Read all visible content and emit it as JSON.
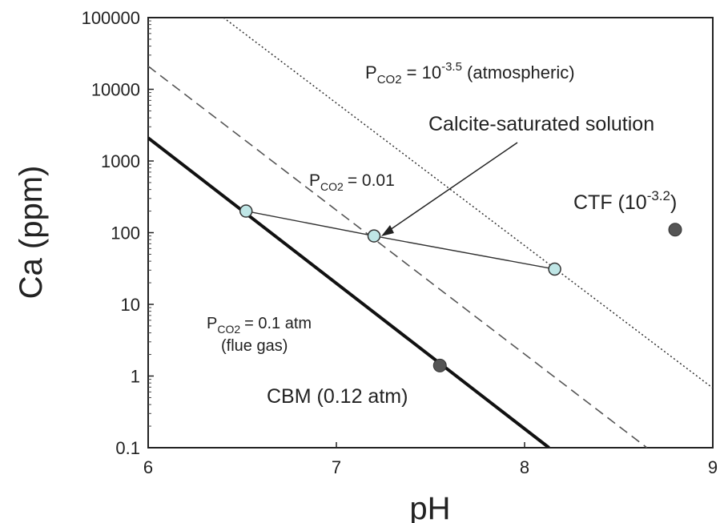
{
  "chart_data": {
    "type": "line",
    "xlabel": "pH",
    "ylabel": "Ca (ppm)",
    "xlim": [
      6,
      9
    ],
    "ylim": [
      0.1,
      100000
    ],
    "yscale": "log",
    "grid": false,
    "x_ticks": [
      "6",
      "7",
      "8",
      "9"
    ],
    "y_ticks": [
      "0.1",
      "1",
      "10",
      "100",
      "1000",
      "10000",
      "100000"
    ],
    "x_tick_values": [
      6,
      7,
      8,
      9
    ],
    "y_tick_values": [
      0.1,
      1,
      10,
      100,
      1000,
      10000,
      100000
    ],
    "series": [
      {
        "style": "solid",
        "color": "#111111",
        "x": [
          6.0,
          8.13
        ],
        "y": [
          2100,
          0.1
        ]
      },
      {
        "style": "dashed",
        "color": "#555555",
        "x": [
          6.0,
          8.65
        ],
        "y": [
          21000,
          0.1
        ]
      },
      {
        "style": "dotted",
        "color": "#333333",
        "x": [
          6.4,
          9.0
        ],
        "y": [
          100000,
          0.68
        ]
      },
      {
        "style": "markers-line",
        "color": "#333333",
        "marker_fill": "#bfe6e6",
        "x": [
          6.52,
          7.2,
          8.16
        ],
        "y": [
          200,
          90,
          31
        ]
      }
    ],
    "points": [
      {
        "x": 8.8,
        "y": 110,
        "color": "#555555"
      },
      {
        "x": 7.55,
        "y": 1.4,
        "color": "#555555"
      }
    ],
    "annotations": {
      "atm": {
        "p": "P",
        "sub": "CO2",
        "eq": " = 10",
        "sup": "-3.5",
        "tail": " (atmospheric)"
      },
      "p001": {
        "p": "P",
        "sub": "CO2",
        "tail": "= 0.01"
      },
      "p01": {
        "p": "P",
        "sub": "CO2",
        "tail": "= 0.1 atm",
        "line2": "(flue gas)"
      },
      "calcite": "Calcite-saturated solution",
      "ctf": {
        "text": "CTF (10",
        "sup": "-3.2",
        "close": ")"
      },
      "cbm": "CBM (0.12 atm)"
    }
  }
}
